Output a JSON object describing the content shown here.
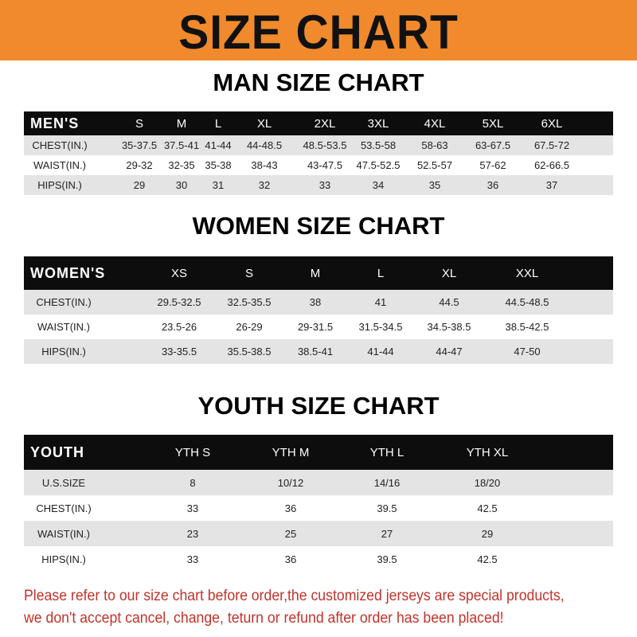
{
  "banner": {
    "title": "SIZE CHART",
    "color": "#f08a2c"
  },
  "men": {
    "title": "MAN SIZE CHART",
    "header": [
      "MEN'S",
      "S",
      "M",
      "L",
      "XL",
      "2XL",
      "3XL",
      "4XL",
      "5XL",
      "6XL"
    ],
    "rows": [
      [
        "CHEST(IN.)",
        "35-37.5",
        "37.5-41",
        "41-44",
        "44-48.5",
        "48.5-53.5",
        "53.5-58",
        "58-63",
        "63-67.5",
        "67.5-72"
      ],
      [
        "WAIST(IN.)",
        "29-32",
        "32-35",
        "35-38",
        "38-43",
        "43-47.5",
        "47.5-52.5",
        "52.5-57",
        "57-62",
        "62-66.5"
      ],
      [
        "HIPS(IN.)",
        "29",
        "30",
        "31",
        "32",
        "33",
        "34",
        "35",
        "36",
        "37"
      ]
    ]
  },
  "women": {
    "title": "WOMEN SIZE CHART",
    "header": [
      "WOMEN'S",
      "XS",
      "S",
      "M",
      "L",
      "XL",
      "XXL"
    ],
    "rows": [
      [
        "CHEST(IN.)",
        "29.5-32.5",
        "32.5-35.5",
        "38",
        "41",
        "44.5",
        "44.5-48.5"
      ],
      [
        "WAIST(IN.)",
        "23.5-26",
        "26-29",
        "29-31.5",
        "31.5-34.5",
        "34.5-38.5",
        "38.5-42.5"
      ],
      [
        "HIPS(IN.)",
        "33-35.5",
        "35.5-38.5",
        "38.5-41",
        "41-44",
        "44-47",
        "47-50"
      ]
    ]
  },
  "youth": {
    "title": "YOUTH SIZE CHART",
    "header": [
      "YOUTH",
      "YTH S",
      "YTH M",
      "YTH L",
      "YTH XL"
    ],
    "rows": [
      [
        "U.S.SIZE",
        "8",
        "10/12",
        "14/16",
        "18/20"
      ],
      [
        "CHEST(IN.)",
        "33",
        "36",
        "39.5",
        "42.5"
      ],
      [
        "WAIST(IN.)",
        "23",
        "25",
        "27",
        "29"
      ],
      [
        "HIPS(IN.)",
        "33",
        "36",
        "39.5",
        "42.5"
      ]
    ]
  },
  "footer": {
    "line1": "Please refer to our size chart before order,the customized jerseys are special products,",
    "line2": "we don't accept cancel, change, teturn or refund after order has been placed!",
    "color": "#c2332b"
  }
}
